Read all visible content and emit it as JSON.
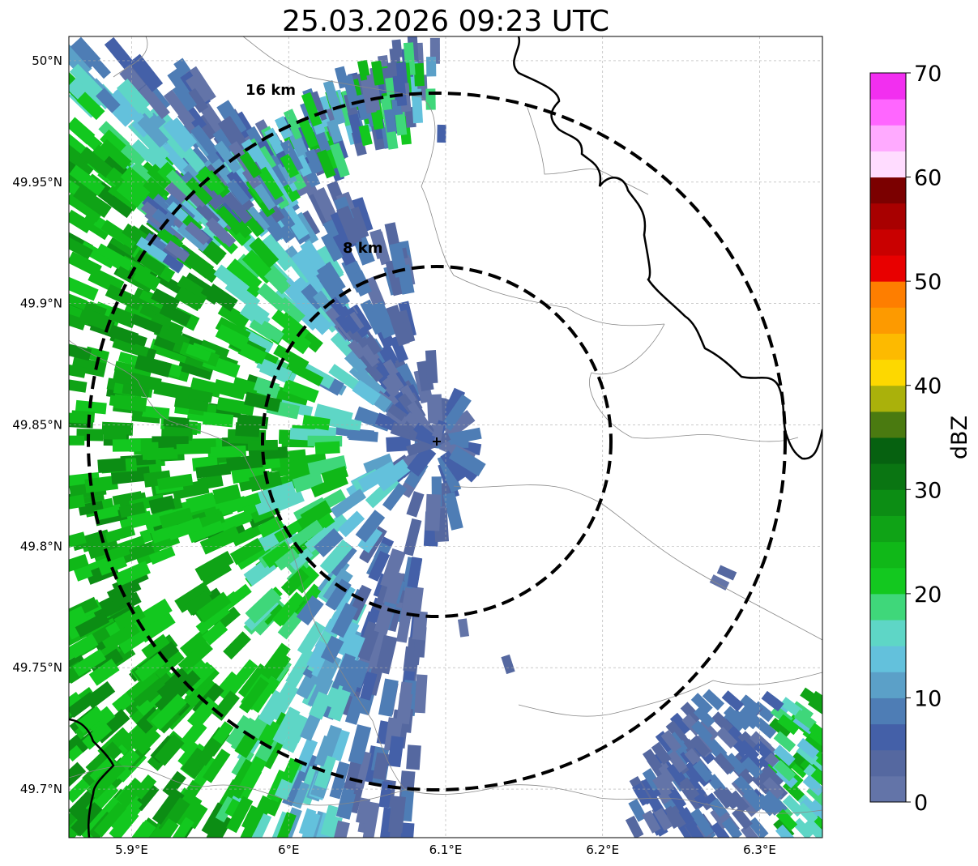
{
  "title": "25.03.2026 09:23 UTC",
  "map": {
    "lon_range": [
      5.86,
      6.34
    ],
    "lat_range": [
      49.68,
      50.01
    ],
    "radar_site": {
      "lon": 6.094,
      "lat": 49.843
    },
    "lon_ticks": [
      {
        "value": 5.9,
        "label": "5.9°E"
      },
      {
        "value": 6.0,
        "label": "6°E"
      },
      {
        "value": 6.1,
        "label": "6.1°E"
      },
      {
        "value": 6.2,
        "label": "6.2°E"
      },
      {
        "value": 6.3,
        "label": "6.3°E"
      }
    ],
    "lat_ticks": [
      {
        "value": 50.0,
        "label": "50°N"
      },
      {
        "value": 49.95,
        "label": "49.95°N"
      },
      {
        "value": 49.9,
        "label": "49.9°N"
      },
      {
        "value": 49.85,
        "label": "49.85°N"
      },
      {
        "value": 49.8,
        "label": "49.8°N"
      },
      {
        "value": 49.75,
        "label": "49.75°N"
      },
      {
        "value": 49.7,
        "label": "49.7°N"
      }
    ],
    "range_rings": [
      {
        "km": 8,
        "label": "8 km"
      },
      {
        "km": 16,
        "label": "16 km"
      }
    ],
    "grid": true
  },
  "colorbar": {
    "title": "dBZ",
    "min": 0,
    "max": 70,
    "step": 2.5,
    "tick_labels": [
      "0",
      "10",
      "20",
      "30",
      "40",
      "50",
      "60",
      "70"
    ],
    "colors": [
      "#6374a8",
      "#5568a0",
      "#4460a8",
      "#4e7db5",
      "#5ba0c8",
      "#63c1dc",
      "#5ed6c6",
      "#3fd77a",
      "#13c81f",
      "#10b818",
      "#0fa316",
      "#0c8d14",
      "#0a7512",
      "#066110",
      "#4a7a10",
      "#aab10b",
      "#fdd800",
      "#fdba00",
      "#fd9a00",
      "#fe7e00",
      "#e80000",
      "#c90000",
      "#a80000",
      "#7b0000",
      "#ffdcff",
      "#ffaaff",
      "#ff66ff",
      "#f22ff0"
    ]
  }
}
